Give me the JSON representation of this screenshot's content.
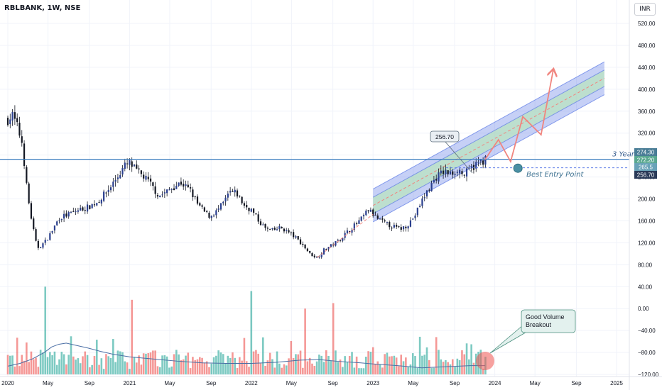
{
  "header": {
    "symbol_title": "RBLBANK, 1W, NSE",
    "currency_button": "INR"
  },
  "annotations": {
    "callout_price": "256.70",
    "three_year_label": "3 Year",
    "best_entry_label": "Best Entry Point",
    "volume_callout": "Good Volume Breakout"
  },
  "colors": {
    "up": "#26a69a",
    "down": "#ef5350",
    "channel_outer": "#5b79e6",
    "channel_inner": "#b8e6b8",
    "projection": "#f0857f",
    "resistance": "#3d7fbf"
  },
  "chart_data": {
    "type": "candlestick",
    "title": "RBLBANK, 1W, NSE",
    "price_axis_ticks": [
      520,
      480,
      440,
      400,
      360,
      320,
      280,
      240,
      200,
      160,
      120,
      80,
      40,
      0,
      -40,
      -80,
      -120
    ],
    "price_axis_tick_labels": [
      "520.00",
      "480.00",
      "440.00",
      "400.00",
      "360.00",
      "320.00",
      "280.00",
      "240.00",
      "200.00",
      "160.00",
      "120.00",
      "80.00",
      "40.00",
      "0.00",
      "−40.00",
      "−80.00",
      "−120.00"
    ],
    "time_axis_labels": [
      "2020",
      "May",
      "Sep",
      "2021",
      "May",
      "Sep",
      "2022",
      "May",
      "Sep",
      "2023",
      "May",
      "Sep",
      "2024",
      "May",
      "Sep",
      "2025"
    ],
    "price_badges": [
      "274.30",
      "272.20",
      "265.5",
      "256.70"
    ],
    "resistance_level": 272.2,
    "entry_level": 256.7,
    "price_path": [
      [
        2020.0,
        345
      ],
      [
        2020.04,
        352
      ],
      [
        2020.08,
        330
      ],
      [
        2020.12,
        300
      ],
      [
        2020.16,
        210
      ],
      [
        2020.2,
        155
      ],
      [
        2020.24,
        110
      ],
      [
        2020.3,
        120
      ],
      [
        2020.36,
        140
      ],
      [
        2020.42,
        165
      ],
      [
        2020.5,
        172
      ],
      [
        2020.58,
        180
      ],
      [
        2020.66,
        185
      ],
      [
        2020.74,
        195
      ],
      [
        2020.82,
        215
      ],
      [
        2020.9,
        240
      ],
      [
        2020.96,
        260
      ],
      [
        2021.0,
        265
      ],
      [
        2021.06,
        250
      ],
      [
        2021.12,
        240
      ],
      [
        2021.18,
        225
      ],
      [
        2021.24,
        205
      ],
      [
        2021.3,
        212
      ],
      [
        2021.36,
        222
      ],
      [
        2021.42,
        230
      ],
      [
        2021.5,
        215
      ],
      [
        2021.56,
        190
      ],
      [
        2021.62,
        175
      ],
      [
        2021.66,
        168
      ],
      [
        2021.72,
        178
      ],
      [
        2021.78,
        195
      ],
      [
        2021.82,
        212
      ],
      [
        2021.88,
        210
      ],
      [
        2021.94,
        188
      ],
      [
        2022.0,
        180
      ],
      [
        2022.06,
        160
      ],
      [
        2022.12,
        145
      ],
      [
        2022.18,
        142
      ],
      [
        2022.24,
        148
      ],
      [
        2022.3,
        140
      ],
      [
        2022.36,
        130
      ],
      [
        2022.42,
        117
      ],
      [
        2022.48,
        100
      ],
      [
        2022.54,
        93
      ],
      [
        2022.6,
        108
      ],
      [
        2022.66,
        115
      ],
      [
        2022.72,
        125
      ],
      [
        2022.78,
        138
      ],
      [
        2022.84,
        150
      ],
      [
        2022.9,
        162
      ],
      [
        2022.96,
        180
      ],
      [
        2023.0,
        172
      ],
      [
        2023.04,
        163
      ],
      [
        2023.1,
        155
      ],
      [
        2023.16,
        150
      ],
      [
        2023.22,
        145
      ],
      [
        2023.28,
        152
      ],
      [
        2023.34,
        168
      ],
      [
        2023.4,
        196
      ],
      [
        2023.46,
        220
      ],
      [
        2023.52,
        240
      ],
      [
        2023.58,
        250
      ],
      [
        2023.64,
        245
      ],
      [
        2023.7,
        256
      ],
      [
        2023.74,
        242
      ],
      [
        2023.8,
        255
      ],
      [
        2023.86,
        265
      ],
      [
        2023.92,
        272
      ]
    ],
    "volume_ma_path": [
      [
        2020.0,
        -105
      ],
      [
        2020.1,
        -100
      ],
      [
        2020.2,
        -92
      ],
      [
        2020.3,
        -80
      ],
      [
        2020.36,
        -70
      ],
      [
        2020.42,
        -65
      ],
      [
        2020.48,
        -63
      ],
      [
        2020.56,
        -67
      ],
      [
        2020.66,
        -72
      ],
      [
        2020.76,
        -78
      ],
      [
        2020.86,
        -83
      ],
      [
        2021.0,
        -88
      ],
      [
        2021.2,
        -92
      ],
      [
        2021.4,
        -96
      ],
      [
        2021.6,
        -99
      ],
      [
        2021.8,
        -100
      ],
      [
        2022.0,
        -100
      ],
      [
        2022.2,
        -98
      ],
      [
        2022.4,
        -94
      ],
      [
        2022.56,
        -93
      ],
      [
        2022.7,
        -96
      ],
      [
        2022.9,
        -99
      ],
      [
        2023.0,
        -101
      ],
      [
        2023.2,
        -104
      ],
      [
        2023.4,
        -108
      ],
      [
        2023.6,
        -106
      ],
      [
        2023.8,
        -104
      ],
      [
        2023.92,
        -104
      ]
    ],
    "volume_spikes": [
      [
        2020.31,
        40
      ],
      [
        2021.02,
        16
      ],
      [
        2022.0,
        32
      ],
      [
        2022.44,
        0
      ],
      [
        2022.68,
        10
      ],
      [
        2023.89,
        -75
      ]
    ],
    "channel": {
      "start": [
        2023.0,
        188
      ],
      "end": [
        2024.9,
        420
      ],
      "outer_half_width": 30,
      "inner_half_width": 15
    },
    "lower_trendline": {
      "start": [
        2022.54,
        93
      ],
      "end": [
        2023.0,
        172
      ]
    },
    "projection_path": [
      [
        2023.92,
        272
      ],
      [
        2024.03,
        308
      ],
      [
        2024.13,
        268
      ],
      [
        2024.23,
        350
      ],
      [
        2024.38,
        317
      ],
      [
        2024.48,
        435
      ]
    ],
    "best_entry_point": [
      2024.19,
      256
    ]
  }
}
